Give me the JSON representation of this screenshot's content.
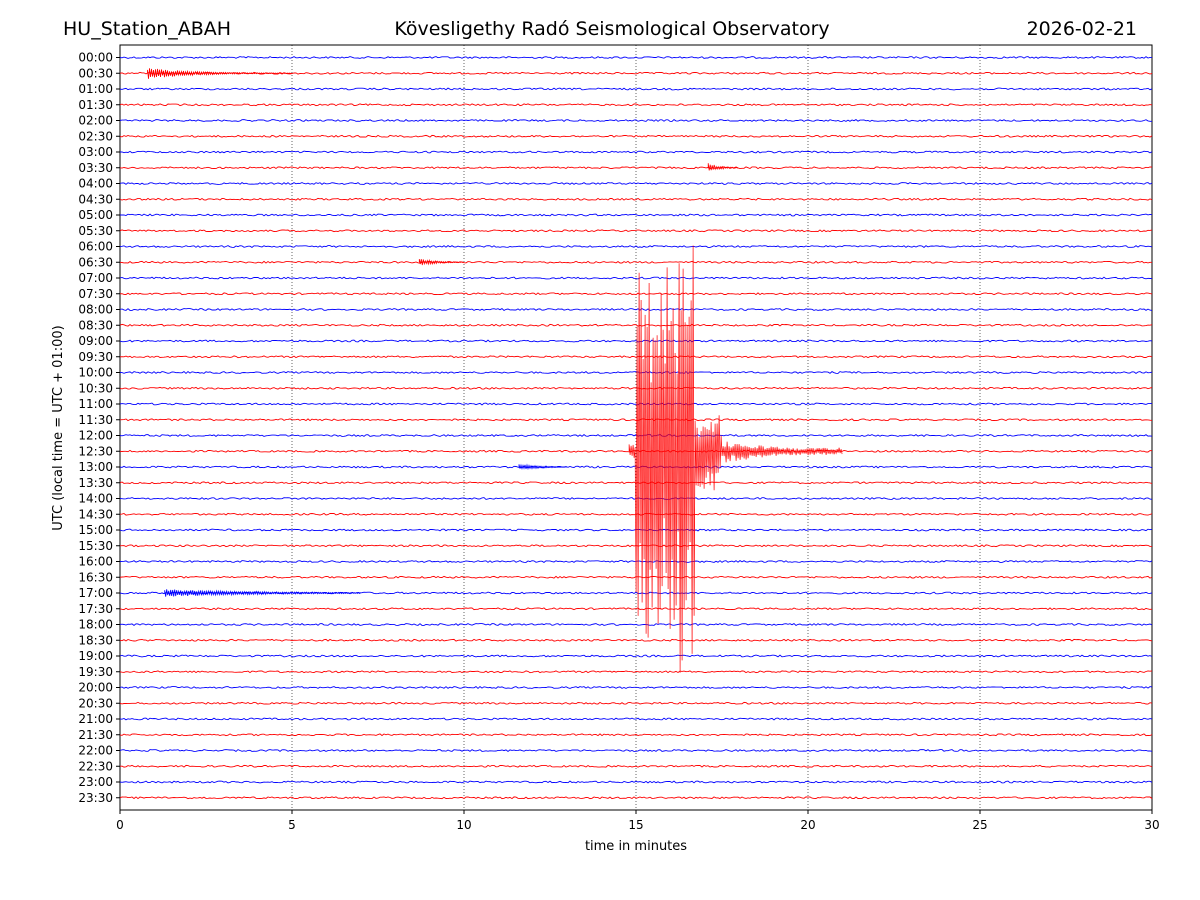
{
  "header": {
    "station": "HU_Station_ABAH",
    "observatory": "Kövesligethy Radó Seismological Observatory",
    "date": "2026-02-21"
  },
  "chart_data": {
    "type": "line",
    "title": "Kövesligethy Radó Seismological Observatory",
    "xlabel": "time in minutes",
    "ylabel": "UTC (local time = UTC + 01:00)",
    "xlim": [
      0,
      30
    ],
    "x_ticks": [
      "0",
      "5",
      "10",
      "15",
      "20",
      "25",
      "30"
    ],
    "grid": "vertical dotted lines at every 5 minutes",
    "row_labels": [
      "00:00",
      "00:30",
      "01:00",
      "01:30",
      "02:00",
      "02:30",
      "03:00",
      "03:30",
      "04:00",
      "04:30",
      "05:00",
      "05:30",
      "06:00",
      "06:30",
      "07:00",
      "07:30",
      "08:00",
      "08:30",
      "09:00",
      "09:30",
      "10:00",
      "10:30",
      "11:00",
      "11:30",
      "12:00",
      "12:30",
      "13:00",
      "13:30",
      "14:00",
      "14:30",
      "15:00",
      "15:30",
      "16:00",
      "16:30",
      "17:00",
      "17:30",
      "18:00",
      "18:30",
      "19:00",
      "19:30",
      "20:00",
      "20:30",
      "21:00",
      "21:30",
      "22:00",
      "22:30",
      "23:00",
      "23:30"
    ],
    "row_colors": [
      "#0000ff",
      "#ff0000"
    ],
    "events": [
      {
        "row": "00:30",
        "start_min": 0.8,
        "end_min": 5.0,
        "amplitude": "small"
      },
      {
        "row": "03:30",
        "start_min": 17.1,
        "end_min": 18.0,
        "amplitude": "small"
      },
      {
        "row": "06:30",
        "start_min": 8.7,
        "end_min": 10.0,
        "amplitude": "small"
      },
      {
        "row": "12:30",
        "start_min": 14.8,
        "end_min": 21.0,
        "amplitude": "very large (main earthquake)"
      },
      {
        "row": "13:00",
        "start_min": 11.6,
        "end_min": 13.0,
        "amplitude": "small"
      },
      {
        "row": "17:00",
        "start_min": 1.3,
        "end_min": 7.0,
        "amplitude": "small"
      }
    ]
  }
}
